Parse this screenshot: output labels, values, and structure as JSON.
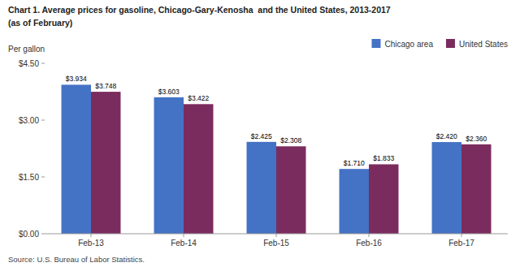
{
  "chart_data": {
    "type": "bar",
    "title": "Chart 1. Average prices for gasoline, Chicago-Gary-Kenosha  and the United States, 2013-2017",
    "subtitle": "(as of February)",
    "y_label": "Per gallon",
    "source": "Source: U.S. Bureau of Labor Statistics.",
    "categories": [
      "Feb-13",
      "Feb-14",
      "Feb-15",
      "Feb-16",
      "Feb-17"
    ],
    "series": [
      {
        "name": "Chicago area",
        "color": "#4472C4",
        "values": [
          3.934,
          3.603,
          2.425,
          1.71,
          2.42
        ],
        "value_labels": [
          "$3.934",
          "$3.603",
          "$2.425",
          "$1.710",
          "$2.420"
        ]
      },
      {
        "name": "United States",
        "color": "#7B2C5E",
        "values": [
          3.748,
          3.422,
          2.308,
          1.833,
          2.36
        ],
        "value_labels": [
          "$3.748",
          "$3.422",
          "$2.308",
          "$1.833",
          "$2.360"
        ]
      }
    ],
    "ylim": [
      0,
      4.5
    ],
    "yticks": [
      {
        "value": 0.0,
        "label": "$0.00"
      },
      {
        "value": 1.5,
        "label": "$1.50"
      },
      {
        "value": 3.0,
        "label": "$3.00"
      },
      {
        "value": 4.5,
        "label": "$4.50"
      }
    ],
    "grid": false,
    "legend": "top-right",
    "data_labels": true
  }
}
